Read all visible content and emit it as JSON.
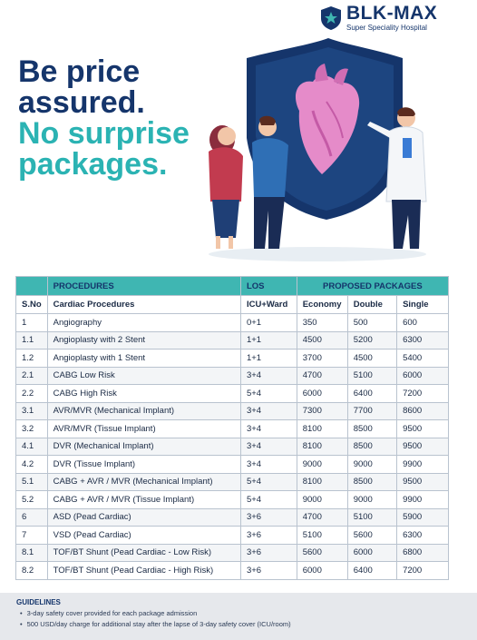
{
  "brand": {
    "name": "BLK-MAX",
    "subtitle": "Super Speciality Hospital"
  },
  "headline": {
    "line1": "Be price",
    "line2": "assured.",
    "line3": "No surprise",
    "line4": "packages."
  },
  "colors": {
    "navy": "#15356b",
    "teal": "#2bb3b3",
    "header_bg": "#3fb6b2"
  },
  "table": {
    "group_headers": {
      "procedures": "PROCEDURES",
      "los": "LOS",
      "packages": "PROPOSED PACKAGES"
    },
    "columns": [
      "S.No",
      "Cardiac Procedures",
      "ICU+Ward",
      "Economy",
      "Double",
      "Single"
    ],
    "rows": [
      [
        "1",
        "Angiography",
        "0+1",
        "350",
        "500",
        "600"
      ],
      [
        "1.1",
        "Angioplasty with 2 Stent",
        "1+1",
        "4500",
        "5200",
        "6300"
      ],
      [
        "1.2",
        "Angioplasty with 1 Stent",
        "1+1",
        "3700",
        "4500",
        "5400"
      ],
      [
        "2.1",
        "CABG Low Risk",
        "3+4",
        "4700",
        "5100",
        "6000"
      ],
      [
        "2.2",
        "CABG High Risk",
        "5+4",
        "6000",
        "6400",
        "7200"
      ],
      [
        "3.1",
        "AVR/MVR (Mechanical Implant)",
        "3+4",
        "7300",
        "7700",
        "8600"
      ],
      [
        "3.2",
        "AVR/MVR (Tissue Implant)",
        "3+4",
        "8100",
        "8500",
        "9500"
      ],
      [
        "4.1",
        "DVR (Mechanical Implant)",
        "3+4",
        "8100",
        "8500",
        "9500"
      ],
      [
        "4.2",
        "DVR (Tissue Implant)",
        "3+4",
        "9000",
        "9000",
        "9900"
      ],
      [
        "5.1",
        "CABG + AVR / MVR (Mechanical Implant)",
        "5+4",
        "8100",
        "8500",
        "9500"
      ],
      [
        "5.2",
        "CABG + AVR / MVR (Tissue Implant)",
        "5+4",
        "9000",
        "9000",
        "9900"
      ],
      [
        "6",
        "ASD (Pead Cardiac)",
        "3+6",
        "4700",
        "5100",
        "5900"
      ],
      [
        "7",
        "VSD (Pead Cardiac)",
        "3+6",
        "5100",
        "5600",
        "6300"
      ],
      [
        "8.1",
        "TOF/BT Shunt (Pead Cardiac - Low Risk)",
        "3+6",
        "5600",
        "6000",
        "6800"
      ],
      [
        "8.2",
        "TOF/BT Shunt (Pead Cardiac - High Risk)",
        "3+6",
        "6000",
        "6400",
        "7200"
      ]
    ]
  },
  "guidelines": {
    "title": "GUIDELINES",
    "items": [
      "3-day safety cover provided for each package admission",
      "500 USD/day charge for additional stay after the lapse of 3-day safety cover (ICU/room)"
    ]
  }
}
